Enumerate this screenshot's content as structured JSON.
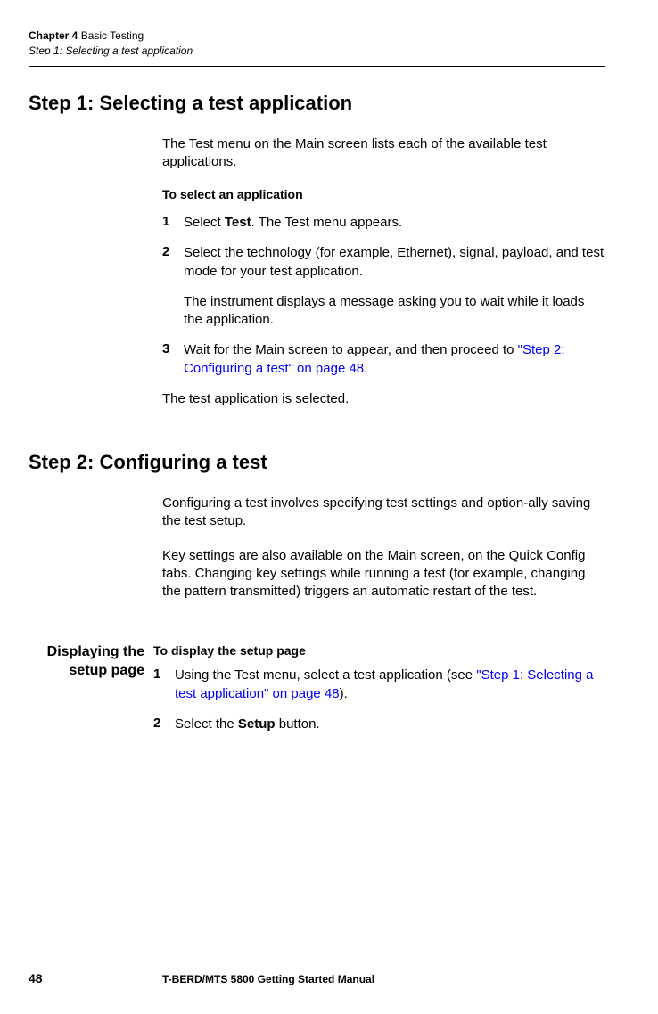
{
  "header": {
    "chapter_label": "Chapter 4",
    "chapter_title": "Basic Testing",
    "section_title": "Step 1: Selecting a test application"
  },
  "section1": {
    "heading": "Step 1: Selecting a test application",
    "intro": "The Test menu on the Main screen lists each of the available test applications.",
    "sub_heading": "To select an application",
    "steps": {
      "s1": {
        "num": "1",
        "pre": "Select ",
        "bold": "Test",
        "post": ". The Test menu appears."
      },
      "s2": {
        "num": "2",
        "text": "Select the technology (for example, Ethernet), signal, payload, and test mode for your test application.",
        "cont": "The instrument displays a message asking you to wait while it loads the application."
      },
      "s3": {
        "num": "3",
        "pre": "Wait for the Main screen to appear, and then proceed to ",
        "link": "\"Step 2: Configuring a test\" on page 48",
        "post": "."
      }
    },
    "closing": "The test application is selected."
  },
  "section2": {
    "heading": "Step 2: Configuring a test",
    "p1": "Configuring a test involves specifying test settings and option-ally saving the test setup.",
    "p2": "Key settings are also available on the Main screen, on the Quick Config tabs. Changing key settings while running a test (for example, changing the pattern transmitted) triggers an automatic restart of the test."
  },
  "section3": {
    "side_heading_line1": "Displaying the",
    "side_heading_line2": "setup page",
    "sub_heading": "To display the setup page",
    "steps": {
      "s1": {
        "num": "1",
        "pre": "Using the Test menu, select a test application (see ",
        "link": "\"Step 1: Selecting a test application\" on page 48",
        "post": ")."
      },
      "s2": {
        "num": "2",
        "pre": "Select the ",
        "bold": "Setup",
        "post": " button."
      }
    }
  },
  "footer": {
    "page": "48",
    "title": "T-BERD/MTS 5800 Getting Started Manual"
  }
}
